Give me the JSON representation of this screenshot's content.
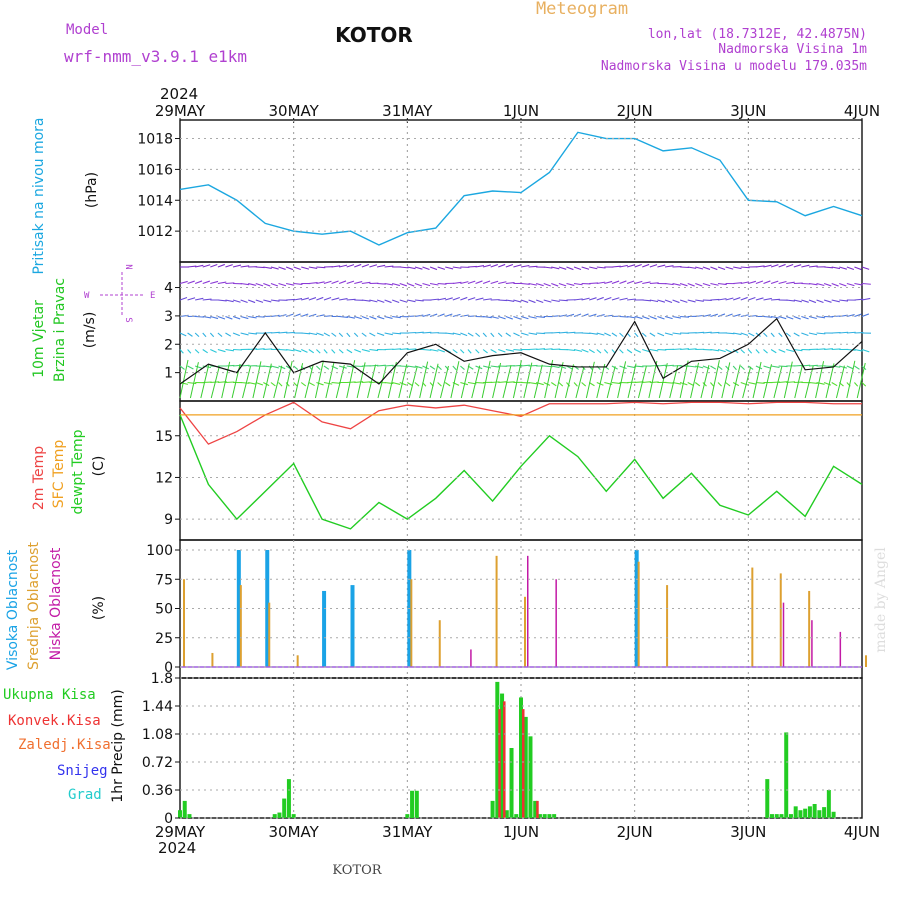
{
  "header": {
    "model_label": "Model",
    "model_name": "wrf-nmm_v3.9.1 e1km",
    "station": "KOTOR",
    "product": "Meteogram",
    "lonlat": "lon,lat (18.7312E, 42.4875N)",
    "elev": "Nadmorska Visina 1m",
    "model_elev": "Nadmorska Visina u modelu 179.035m"
  },
  "footer": {
    "station": "KOTOR",
    "watermark": "made by Angel"
  },
  "time_axis": {
    "year": "2024",
    "ticks": [
      "29MAY",
      "30MAY",
      "31MAY",
      "1JUN",
      "2JUN",
      "3JUN",
      "4JUN"
    ]
  },
  "compass": {
    "n": "N",
    "s": "S",
    "e": "E",
    "w": "W"
  },
  "colors": {
    "pressure": "#1ba7e0",
    "wind_label": "#22c722",
    "temp2m": "#ee4444",
    "sfc_temp": "#f0a020",
    "dewpt": "#22cc22",
    "high_cloud": "#1aa3e6",
    "mid_cloud": "#dda030",
    "low_cloud": "#c21aa6",
    "total_precip": "#22cc22",
    "conv_precip": "#ee3333",
    "snow": "#3333ee",
    "hail": "#22cccc",
    "header_purple": "#b040d0",
    "meteogram_orange": "#e8b060"
  },
  "panels": {
    "pressure": {
      "label": "Pritisak na nivou mora",
      "unit": "(hPa)"
    },
    "wind": {
      "label1": "10m Vjetar",
      "label2": "Brzina i Pravac",
      "unit": "(m/s)"
    },
    "temp": {
      "label1": "2m Temp",
      "label2": "SFC Temp",
      "label3": "dewpt Temp",
      "unit": "(C)"
    },
    "cloud": {
      "label1": "Visoka Oblacnost",
      "label2": "Srednja Oblacnost",
      "label3": "Niska Oblacnost",
      "unit": "(%)"
    },
    "precip": {
      "unit": "1hr Precip (mm)"
    }
  },
  "precip_legend": [
    "Ukupna Kisa",
    "Konvek.Kisa",
    "Zaledj.Kisa",
    "Snijeg",
    "Grad"
  ],
  "chart_data": [
    {
      "type": "line",
      "title": "",
      "ylabel": "Pritisak na nivou mora (hPa)",
      "ylim": [
        1010.0,
        1019.2
      ],
      "yticks": [
        1012,
        1014,
        1016,
        1018
      ],
      "x_hours": [
        0,
        6,
        12,
        18,
        24,
        30,
        36,
        42,
        48,
        54,
        60,
        66,
        72,
        78,
        84,
        90,
        96,
        102,
        108,
        114,
        120,
        126,
        132,
        138,
        144
      ],
      "series": [
        {
          "values": [
            1014.7,
            1015.0,
            1014.0,
            1012.5,
            1012.0,
            1011.8,
            1012.0,
            1011.1,
            1011.9,
            1012.2,
            1014.3,
            1014.6,
            1014.5,
            1015.8,
            1018.4,
            1018.0,
            1018.0,
            1017.2,
            1017.4,
            1016.6,
            1014.0,
            1013.9,
            1013.0,
            1013.6,
            1013.0
          ]
        }
      ]
    },
    {
      "type": "line",
      "title": "",
      "ylabel": "10m Vjetar Brzina i Pravac (m/s)",
      "ylim": [
        0.0,
        4.9
      ],
      "yticks": [
        1,
        2,
        3,
        4
      ],
      "x_hours": [
        0,
        6,
        12,
        18,
        24,
        30,
        36,
        42,
        48,
        54,
        60,
        66,
        72,
        78,
        84,
        90,
        96,
        102,
        108,
        114,
        120,
        126,
        132,
        138,
        144
      ],
      "series": [
        {
          "values": [
            0.6,
            1.3,
            1.0,
            2.4,
            1.0,
            1.4,
            1.3,
            0.6,
            1.7,
            2.0,
            1.4,
            1.6,
            1.7,
            1.3,
            1.2,
            1.2,
            2.8,
            0.8,
            1.4,
            1.5,
            2.0,
            2.9,
            1.1,
            1.2,
            2.1
          ]
        }
      ]
    },
    {
      "type": "line",
      "title": "",
      "ylabel": "2m Temp / SFC Temp / dewpt Temp (C)",
      "ylim": [
        7.5,
        17.5
      ],
      "yticks": [
        9,
        12,
        15
      ],
      "x_hours": [
        0,
        6,
        12,
        18,
        24,
        30,
        36,
        42,
        48,
        54,
        60,
        66,
        72,
        78,
        84,
        90,
        96,
        102,
        108,
        114,
        120,
        126,
        132,
        138,
        144
      ],
      "series": [
        {
          "values": [
            17.0,
            14.4,
            15.3,
            16.5,
            17.4,
            16.0,
            15.5,
            16.8,
            17.2,
            17.0,
            17.2,
            16.8,
            16.4,
            17.3,
            17.3,
            17.3,
            17.4,
            17.3,
            17.4,
            17.4,
            17.3,
            17.4,
            17.4,
            17.3,
            17.3
          ]
        },
        {
          "values": [
            16.5,
            16.5,
            16.5,
            16.5,
            16.5,
            16.5,
            16.5,
            16.5,
            16.5,
            16.5,
            16.5,
            16.5,
            16.5,
            16.5,
            16.5,
            16.5,
            16.5,
            16.5,
            16.5,
            16.5,
            16.5,
            16.5,
            16.5,
            16.5,
            16.5
          ]
        },
        {
          "values": [
            16.5,
            11.5,
            9.0,
            11.0,
            13.0,
            9.0,
            8.3,
            10.2,
            9.0,
            10.5,
            12.5,
            10.3,
            12.8,
            15.0,
            13.5,
            11.0,
            13.3,
            10.5,
            12.3,
            10.0,
            9.3,
            11.0,
            9.2,
            12.8,
            11.5
          ]
        }
      ]
    },
    {
      "type": "bar",
      "title": "",
      "ylabel": "Oblacnost (%)",
      "ylim": [
        0,
        100
      ],
      "yticks": [
        0,
        25,
        50,
        75,
        100
      ],
      "x_hours": [
        0,
        6,
        12,
        18,
        24,
        30,
        36,
        42,
        48,
        54,
        60,
        66,
        72,
        78,
        84,
        90,
        96,
        102,
        108,
        114,
        120,
        126,
        132,
        138,
        144
      ],
      "series": [
        {
          "values": [
            0,
            0,
            100,
            100,
            0,
            65,
            70,
            0,
            100,
            0,
            0,
            0,
            0,
            0,
            0,
            0,
            100,
            0,
            0,
            0,
            0,
            0,
            0,
            0,
            0
          ]
        },
        {
          "values": [
            75,
            12,
            70,
            55,
            10,
            0,
            0,
            0,
            75,
            40,
            0,
            95,
            60,
            0,
            0,
            0,
            90,
            70,
            0,
            0,
            85,
            80,
            65,
            0,
            10
          ]
        },
        {
          "values": [
            0,
            0,
            0,
            0,
            0,
            0,
            0,
            0,
            0,
            0,
            15,
            0,
            95,
            75,
            0,
            0,
            0,
            0,
            0,
            0,
            0,
            55,
            40,
            30,
            0
          ]
        }
      ]
    },
    {
      "type": "bar",
      "title": "",
      "ylabel": "1hr Precip (mm)",
      "ylim": [
        0,
        1.8
      ],
      "yticks": [
        0,
        0.36,
        0.72,
        1.08,
        1.44,
        1.8
      ],
      "x_hours": [
        0,
        1,
        2,
        20,
        21,
        22,
        23,
        24,
        48,
        49,
        50,
        66,
        67,
        68,
        69,
        70,
        71,
        72,
        73,
        74,
        75,
        76,
        77,
        78,
        79,
        124,
        125,
        126,
        127,
        128,
        129,
        130,
        131,
        132,
        133,
        134,
        135,
        136,
        137,
        138
      ],
      "series": [
        {
          "values": [
            0.1,
            0.22,
            0.05,
            0.05,
            0.07,
            0.25,
            0.5,
            0.05,
            0.05,
            0.35,
            0.35,
            0.22,
            1.75,
            1.6,
            0.1,
            0.9,
            0.05,
            1.55,
            1.3,
            1.05,
            0.22,
            0.05,
            0.05,
            0.05,
            0.05,
            0.5,
            0.05,
            0.05,
            0.05,
            1.1,
            0.05,
            0.15,
            0.1,
            0.12,
            0.15,
            0.18,
            0.1,
            0.14,
            0.36,
            0.08
          ]
        },
        {
          "values": [
            0,
            0,
            0,
            0,
            0,
            0,
            0,
            0,
            0,
            0,
            0,
            0,
            1.4,
            1.5,
            0,
            0,
            0,
            1.4,
            0,
            0,
            0.22,
            0,
            0,
            0,
            0,
            0,
            0,
            0,
            0,
            0,
            0,
            0,
            0,
            0,
            0,
            0,
            0,
            0,
            0,
            0
          ]
        }
      ]
    }
  ]
}
